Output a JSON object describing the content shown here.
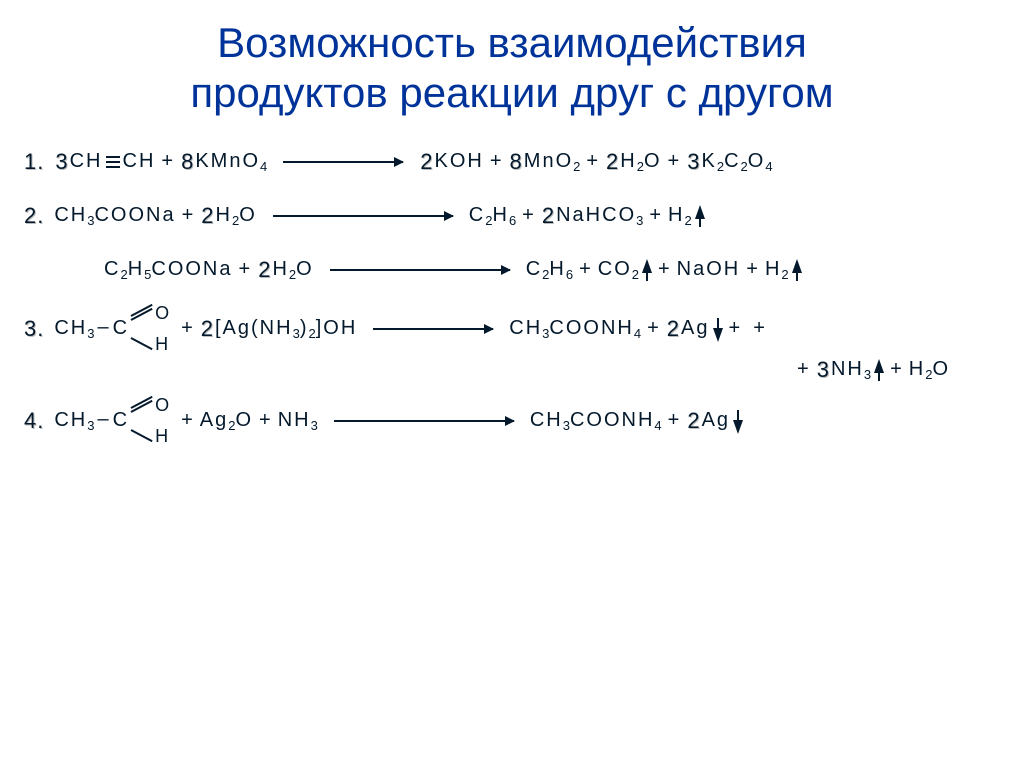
{
  "title_line1": "Возможность взаимодействия",
  "title_line2": "продуктов реакции друг с другом",
  "colors": {
    "title": "#003399",
    "text": "#04192c",
    "shadow": "#bbbbbb",
    "background": "#ffffff"
  },
  "fontsizes": {
    "title": 42,
    "equation": 20,
    "coefficient": 22,
    "subscript": 13
  },
  "equations": [
    {
      "num": "1.",
      "lhs": [
        {
          "coef": "3",
          "parts": [
            "CH"
          ],
          "triple": true,
          "parts2": [
            "CH"
          ]
        },
        {
          "plus": true
        },
        {
          "coef": "8",
          "parts": [
            "KMnO",
            {
              "sub": "4"
            }
          ]
        }
      ],
      "rhs_groups": [
        [
          {
            "coef": "2",
            "parts": [
              "KOH"
            ]
          }
        ],
        [
          {
            "coef": "8",
            "parts": [
              "MnO",
              {
                "sub": "2"
              }
            ]
          }
        ],
        [
          {
            "coef": "2",
            "parts": [
              "H",
              {
                "sub": "2"
              },
              "O"
            ]
          }
        ],
        [
          {
            "coef": "3",
            "parts": [
              "K",
              {
                "sub": "2"
              },
              "C",
              {
                "sub": "2"
              },
              "O",
              {
                "sub": "4"
              }
            ]
          }
        ]
      ]
    },
    {
      "num": "2.",
      "lhs": [
        {
          "parts": [
            "CH",
            {
              "sub": "3"
            },
            "COONa"
          ]
        },
        {
          "plus": true
        },
        {
          "coef": "2",
          "parts": [
            "H",
            {
              "sub": "2"
            },
            "O"
          ]
        }
      ],
      "rhs_groups": [
        [
          {
            "parts": [
              "C",
              {
                "sub": "2"
              },
              "H",
              {
                "sub": "6"
              }
            ]
          }
        ],
        [
          {
            "coef": "2",
            "parts": [
              "NaHCO",
              {
                "sub": "3"
              }
            ]
          }
        ],
        [
          {
            "parts": [
              "H",
              {
                "sub": "2"
              }
            ],
            "gas": true
          }
        ]
      ]
    },
    {
      "num": "",
      "indent": true,
      "lhs": [
        {
          "parts": [
            "C",
            {
              "sub": "2"
            },
            "H",
            {
              "sub": "5"
            },
            "COONa"
          ]
        },
        {
          "plus": true
        },
        {
          "coef": "2",
          "parts": [
            "H",
            {
              "sub": "2"
            },
            "O"
          ]
        }
      ],
      "rhs_groups": [
        [
          {
            "parts": [
              "C",
              {
                "sub": "2"
              },
              "H",
              {
                "sub": "6"
              }
            ]
          }
        ],
        [
          {
            "parts": [
              "CO",
              {
                "sub": "2"
              }
            ],
            "gas": true
          }
        ],
        [
          {
            "parts": [
              "NaOH"
            ]
          }
        ],
        [
          {
            "parts": [
              "H",
              {
                "sub": "2"
              }
            ],
            "gas": true
          }
        ]
      ]
    },
    {
      "num": "3.",
      "struct": {
        "pre": [
          "CH",
          {
            "sub": "3"
          }
        ],
        "dash": "–",
        "c": "C",
        "top": "O",
        "bot": "H",
        "dbl": true
      },
      "lhs_after_struct": [
        {
          "plus": true
        },
        {
          "coef": "2",
          "parts": [
            "[Ag(NH",
            {
              "sub": "3"
            },
            ")",
            {
              "sub": "2"
            },
            "]OH"
          ]
        }
      ],
      "rhs_groups": [
        [
          {
            "parts": [
              "CH",
              {
                "sub": "3"
              },
              "COONH",
              {
                "sub": "4"
              }
            ]
          }
        ],
        [
          {
            "coef": "2",
            "parts": [
              "Ag"
            ],
            "precip": true
          }
        ],
        [
          {
            "plus_trail": true
          }
        ]
      ],
      "continuation": [
        [
          {
            "plus_lead": true
          },
          {
            "coef": "3",
            "parts": [
              "NH",
              {
                "sub": "3"
              }
            ],
            "gas": true
          }
        ],
        [
          {
            "parts": [
              "H",
              {
                "sub": "2"
              },
              "O"
            ]
          }
        ]
      ]
    },
    {
      "num": "4.",
      "struct": {
        "pre": [
          "CH",
          {
            "sub": "3"
          }
        ],
        "dash": "–",
        "c": "C",
        "top": "O",
        "bot": "H",
        "dbl": true
      },
      "lhs_after_struct": [
        {
          "plus": true
        },
        {
          "parts": [
            "Ag",
            {
              "sub": "2"
            },
            "O"
          ]
        },
        {
          "plus": true
        },
        {
          "parts": [
            "NH",
            {
              "sub": "3"
            }
          ]
        }
      ],
      "rhs_groups": [
        [
          {
            "parts": [
              "CH",
              {
                "sub": "3"
              },
              "COONH",
              {
                "sub": "4"
              }
            ]
          }
        ],
        [
          {
            "coef": "2",
            "parts": [
              "Ag"
            ],
            "precip": true
          }
        ]
      ]
    }
  ]
}
